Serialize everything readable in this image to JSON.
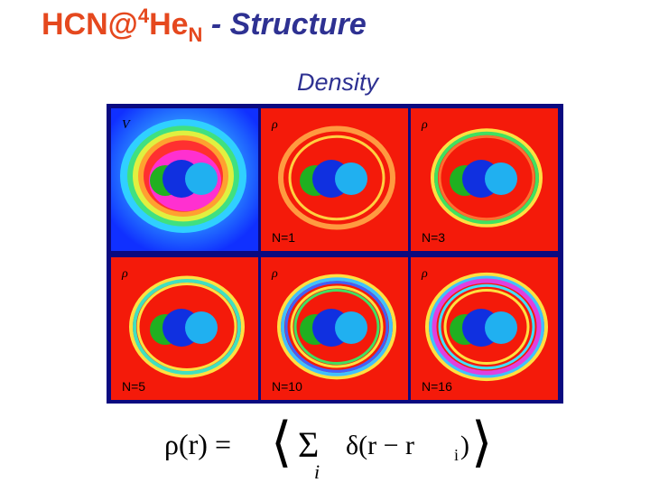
{
  "header": {
    "title_main": "HCN@",
    "title_sup": "4",
    "title_he": "He",
    "title_sub": "N",
    "title_rest": " - Structure"
  },
  "subtitle": "Density",
  "panels": [
    {
      "symbol": "V"
    },
    {
      "symbol": "ρ",
      "label": "N=1"
    },
    {
      "symbol": "ρ",
      "label": "N=3"
    },
    {
      "symbol": "ρ",
      "label": "N=5"
    },
    {
      "symbol": "ρ",
      "label": "N=10"
    },
    {
      "symbol": "ρ",
      "label": "N=16"
    }
  ],
  "formula": {
    "lhs": "ρ(r) =",
    "open": "⟨",
    "sum": "Σ",
    "index": "i",
    "term": "δ(r − r",
    "term_sub": "i",
    "close_paren": ")",
    "close": "⟩"
  }
}
